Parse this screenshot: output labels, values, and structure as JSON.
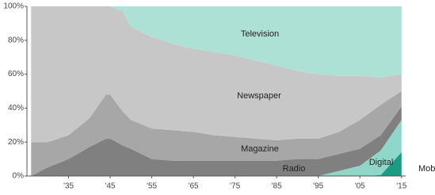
{
  "chart_data": {
    "type": "stacked_area",
    "x": [
      1926,
      1930,
      1935,
      1940,
      1944,
      1945,
      1948,
      1950,
      1955,
      1960,
      1965,
      1970,
      1975,
      1980,
      1985,
      1990,
      1995,
      2000,
      2005,
      2010,
      2015
    ],
    "xlim": [
      1925,
      2016
    ],
    "ylim": [
      0,
      100
    ],
    "xticks": [
      {
        "value": 1935,
        "label": "'35"
      },
      {
        "value": 1945,
        "label": "'45"
      },
      {
        "value": 1955,
        "label": "'55"
      },
      {
        "value": 1965,
        "label": "'65"
      },
      {
        "value": 1975,
        "label": "'75"
      },
      {
        "value": 1985,
        "label": "'85"
      },
      {
        "value": 1995,
        "label": "'95"
      },
      {
        "value": 2005,
        "label": "'05"
      },
      {
        "value": 2015,
        "label": "'15"
      }
    ],
    "yticks": [
      {
        "value": 0,
        "label": "0%"
      },
      {
        "value": 20,
        "label": "20%"
      },
      {
        "value": 40,
        "label": "40%"
      },
      {
        "value": 60,
        "label": "60%"
      },
      {
        "value": 80,
        "label": "80%"
      },
      {
        "value": 100,
        "label": "100%"
      }
    ],
    "series": [
      {
        "name": "Mobile",
        "color": "#1b9b82",
        "values": [
          0,
          0,
          0,
          0,
          0,
          0,
          0,
          0,
          0,
          0,
          0,
          0,
          0,
          0,
          0,
          0,
          0,
          0,
          0,
          0.5,
          14
        ]
      },
      {
        "name": "Digital",
        "color": "#8ed7c9",
        "values": [
          0,
          0,
          0,
          0,
          0,
          0,
          0,
          0,
          0,
          0,
          0,
          0,
          0,
          0,
          0,
          0,
          0,
          3,
          6,
          14.5,
          19
        ]
      },
      {
        "name": "Radio",
        "color": "#808080",
        "values": [
          0,
          5,
          10,
          17,
          22,
          22,
          18,
          16,
          10,
          9,
          9,
          9,
          9,
          9,
          9,
          10,
          10,
          10,
          10,
          9,
          8
        ]
      },
      {
        "name": "Magazine",
        "color": "#a7a7a7",
        "values": [
          20,
          15,
          14,
          17,
          26,
          26,
          20,
          17,
          18,
          18,
          17,
          15,
          14,
          13,
          12,
          12,
          12,
          13,
          17,
          18,
          9
        ]
      },
      {
        "name": "Newspaper",
        "color": "#c7c7c7",
        "values": [
          80,
          80,
          76,
          66,
          52,
          52,
          59,
          55,
          54,
          51,
          49,
          49,
          48,
          46,
          44,
          40,
          38,
          33,
          26,
          16,
          10
        ]
      },
      {
        "name": "Television",
        "color": "#aee1d6",
        "values": [
          0,
          0,
          0,
          0,
          0,
          0,
          3,
          12,
          18,
          22,
          25,
          27,
          29,
          32,
          35,
          38,
          40,
          41,
          41,
          42,
          40
        ]
      }
    ]
  }
}
